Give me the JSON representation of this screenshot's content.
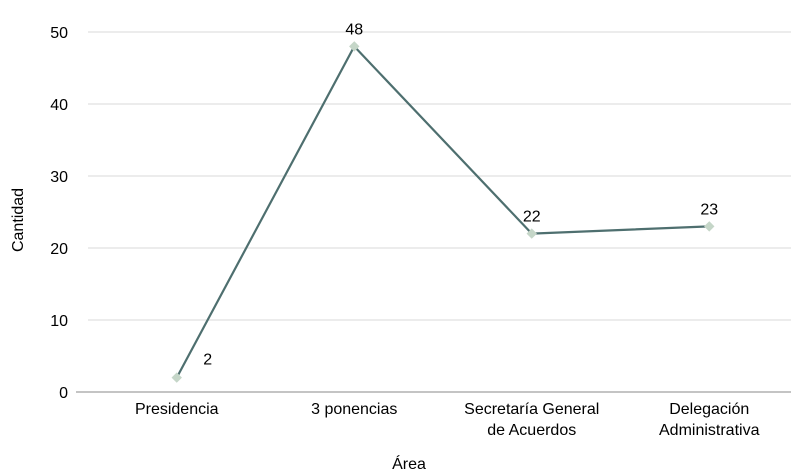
{
  "chart_data": {
    "type": "line",
    "categories": [
      [
        "Presidencia"
      ],
      [
        "3 ponencias"
      ],
      [
        "Secretaría General",
        "de Acuerdos"
      ],
      [
        "Delegación",
        "Administrativa"
      ]
    ],
    "series": [
      {
        "values": [
          2,
          48,
          22,
          23
        ]
      }
    ],
    "data_labels": [
      "2",
      "48",
      "22",
      "23"
    ],
    "xlabel": "Área",
    "ylabel": "Cantidad",
    "ylim": [
      0,
      50
    ],
    "yticks": [
      0,
      10,
      20,
      30,
      40,
      50
    ],
    "grid": true,
    "legend": "none",
    "colors": {
      "line": "#4e6f6f",
      "marker": "#c5d6c8",
      "grid": "#d9d9d9",
      "axis": "#888888"
    }
  }
}
